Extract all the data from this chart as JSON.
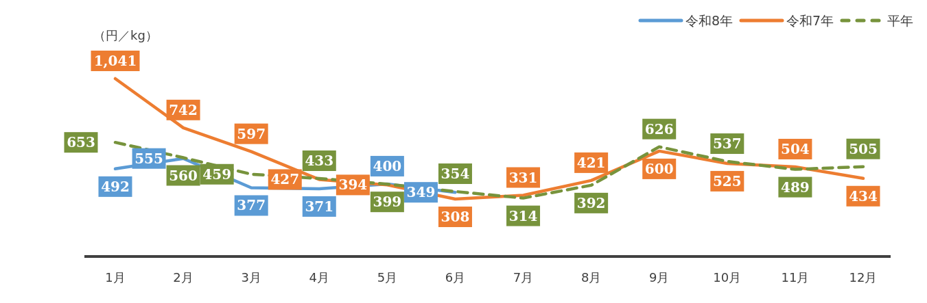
{
  "chart_data": {
    "type": "line",
    "ylabel": "（円／kg）",
    "categories": [
      "1月",
      "2月",
      "3月",
      "4月",
      "5月",
      "6月",
      "7月",
      "8月",
      "9月",
      "10月",
      "11月",
      "12月"
    ],
    "series": [
      {
        "name": "令和8年",
        "color": "#5b9bd5",
        "values": [
          492,
          555,
          377,
          371,
          400,
          349,
          null,
          null,
          null,
          null,
          null,
          null
        ],
        "value_labels": [
          "492",
          "555",
          "377",
          "371",
          "400",
          "349",
          null,
          null,
          null,
          null,
          null,
          null
        ]
      },
      {
        "name": "令和7年",
        "color": "#ed7d31",
        "values": [
          1041,
          742,
          597,
          427,
          394,
          308,
          331,
          421,
          600,
          525,
          504,
          434
        ],
        "value_labels": [
          "1,041",
          "742",
          "597",
          "427",
          "394",
          "308",
          "331",
          "421",
          "600",
          "525",
          "504",
          "434"
        ]
      },
      {
        "name": "平年",
        "color": "#77933c",
        "line_style": "dashed",
        "values": [
          653,
          560,
          459,
          433,
          399,
          354,
          314,
          392,
          626,
          537,
          489,
          505
        ],
        "value_labels": [
          "653",
          "560",
          "459",
          "433",
          "399",
          "354",
          "314",
          "392",
          "626",
          "537",
          "489",
          "505"
        ]
      }
    ],
    "legend": "top right"
  }
}
